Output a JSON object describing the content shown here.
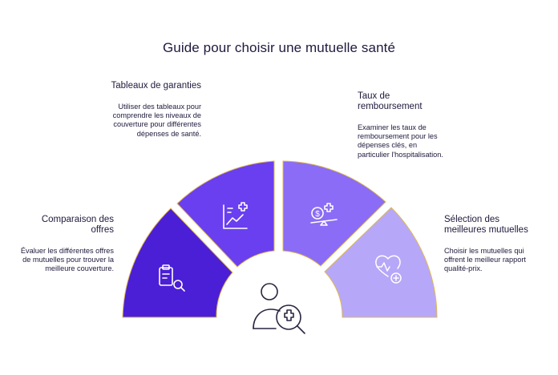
{
  "title": "Guide pour choisir une mutuelle santé",
  "colors": {
    "seg1": "#4b1fd6",
    "seg2": "#6a3ff0",
    "seg3": "#8b6cf6",
    "seg4": "#b7a7f9",
    "outline": "#e0b94f",
    "center_icon": "#2a2540"
  },
  "segments": [
    {
      "heading": "Comparaison des offres",
      "description": "Évaluer les différentes offres de mutuelles pour trouver la meilleure couverture.",
      "icon": "clipboard-search-icon"
    },
    {
      "heading": "Tableaux de garanties",
      "description": "Utiliser des tableaux pour comprendre les niveaux de couverture pour différentes dépenses de santé.",
      "icon": "chart-plus-icon"
    },
    {
      "heading": "Taux de remboursement",
      "description": "Examiner les taux de remboursement pour les dépenses clés, en particulier l'hospitalisation.",
      "icon": "money-scale-icon"
    },
    {
      "heading": "Sélection des meilleures mutuelles",
      "description": "Choisir les mutuelles qui offrent le meilleur rapport qualité-prix.",
      "icon": "heart-plus-icon"
    }
  ],
  "center_icon": "user-health-search-icon"
}
